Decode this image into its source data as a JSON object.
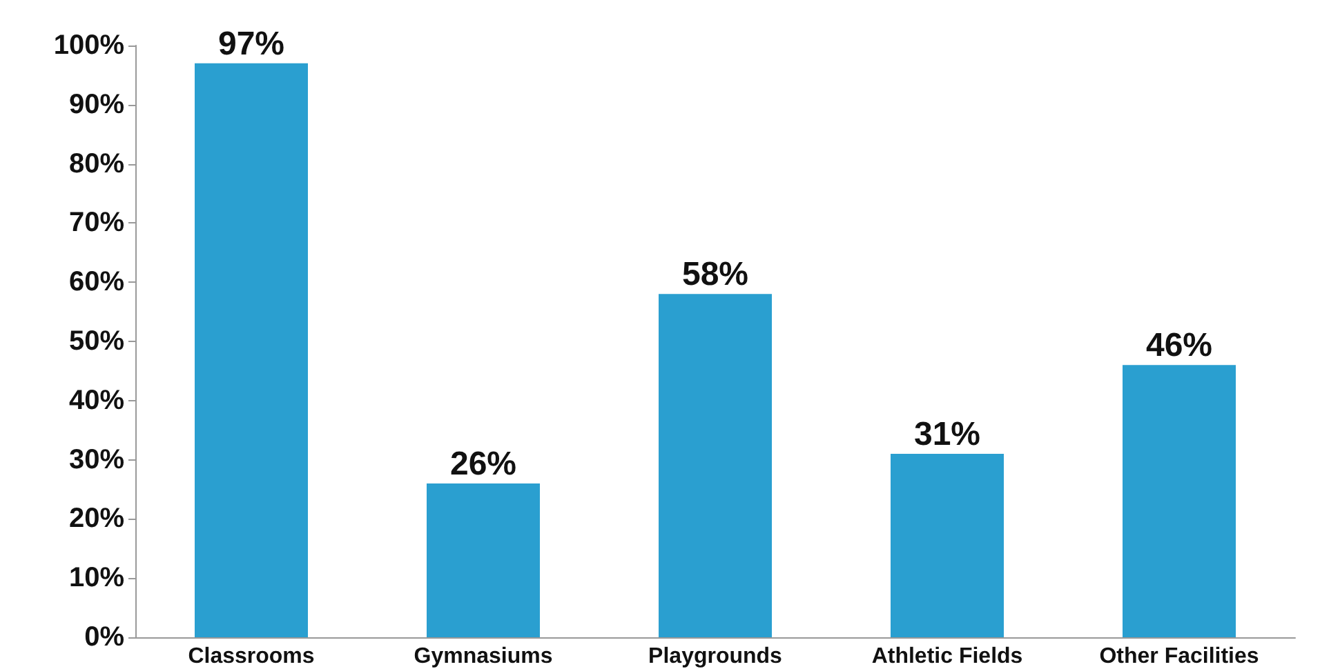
{
  "chart_data": {
    "type": "bar",
    "categories": [
      "Classrooms",
      "Gymnasiums",
      "Playgrounds",
      "Athletic Fields",
      "Other Facilities"
    ],
    "values": [
      97,
      26,
      58,
      31,
      46
    ],
    "value_labels": [
      "97%",
      "26%",
      "58%",
      "31%",
      "46%"
    ],
    "color": "#2a9fd0",
    "ylim": [
      0,
      100
    ],
    "yticks": [
      {
        "value": 0,
        "label": "0%"
      },
      {
        "value": 10,
        "label": "10%"
      },
      {
        "value": 20,
        "label": "20%"
      },
      {
        "value": 30,
        "label": "30%"
      },
      {
        "value": 40,
        "label": "40%"
      },
      {
        "value": 50,
        "label": "50%"
      },
      {
        "value": 60,
        "label": "60%"
      },
      {
        "value": 70,
        "label": "70%"
      },
      {
        "value": 80,
        "label": "80%"
      },
      {
        "value": 90,
        "label": "90%"
      },
      {
        "value": 100,
        "label": "100%"
      }
    ]
  }
}
